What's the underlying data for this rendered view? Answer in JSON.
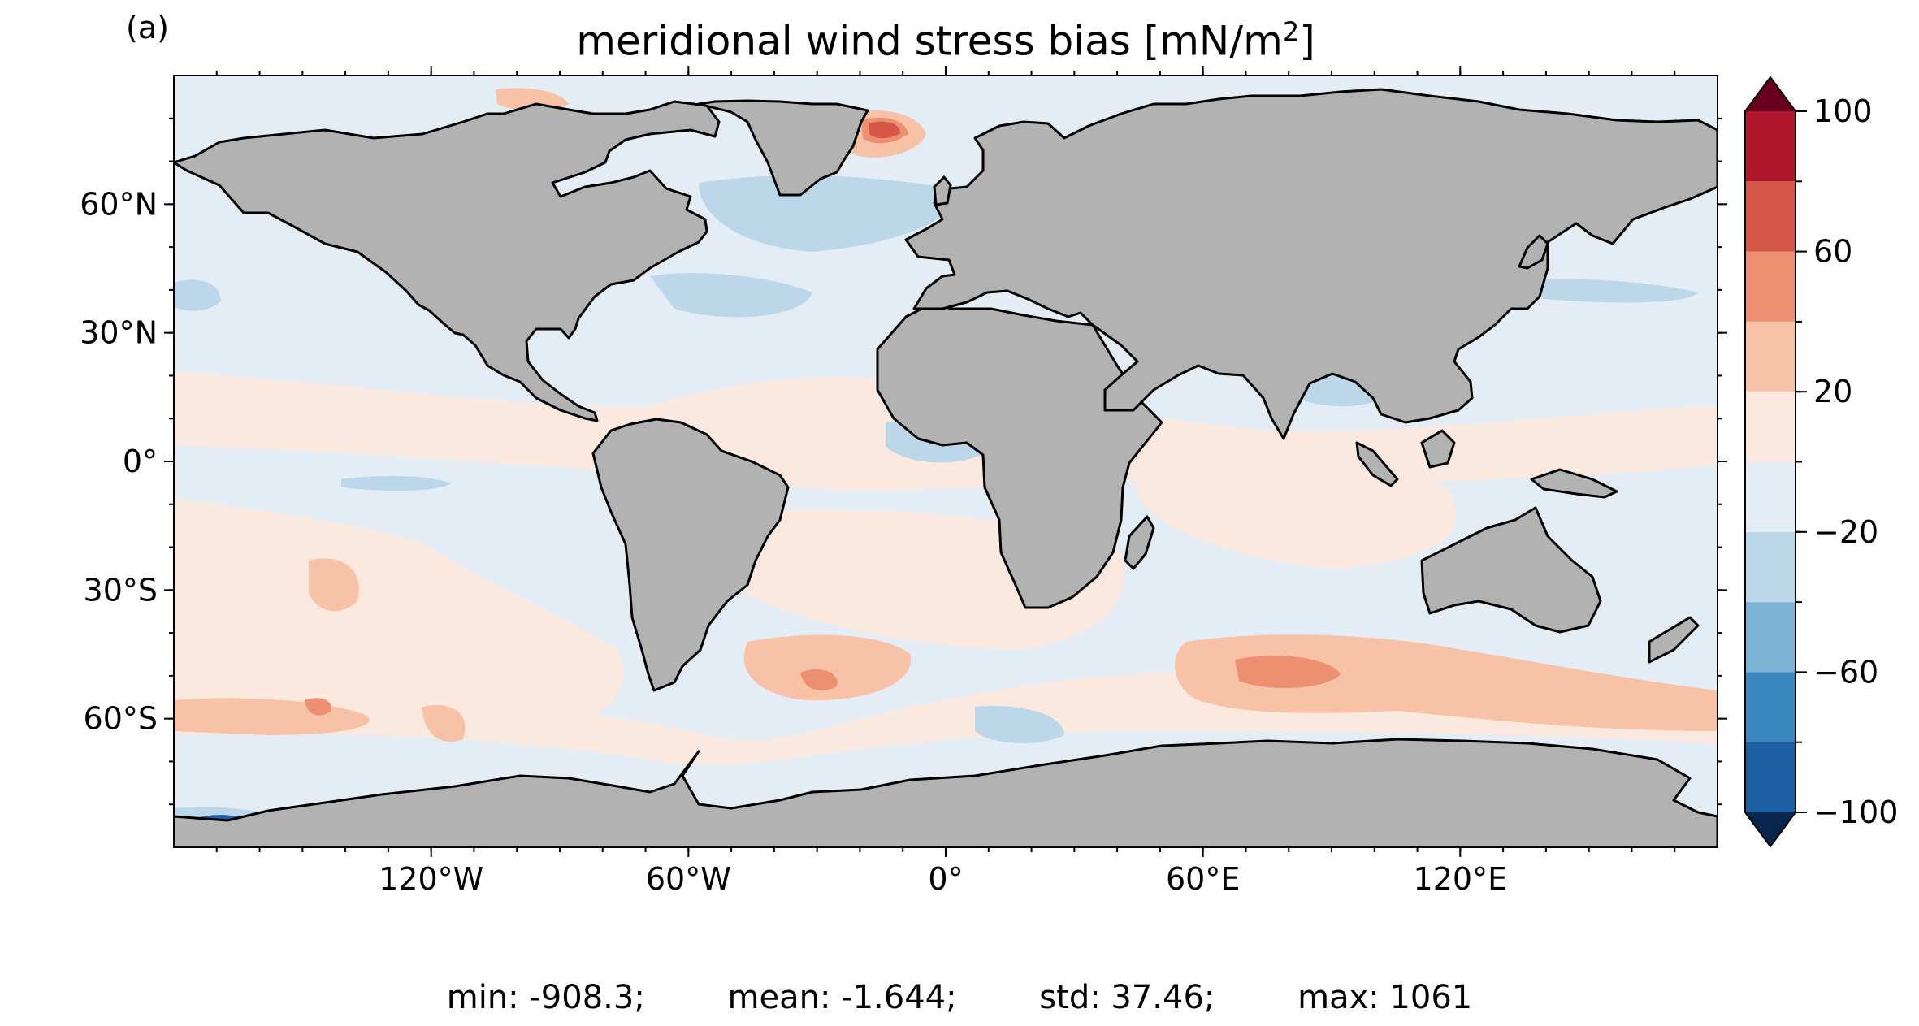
{
  "figure": {
    "panel_label": "(a)",
    "title_prefix": "meridional wind stress bias [mN/m",
    "title_superscript": "2",
    "title_suffix": "]"
  },
  "map": {
    "projection": "equirectangular",
    "lon_range": [
      -180,
      180
    ],
    "lat_range": [
      -90,
      90
    ],
    "land_color": "#b2b2b2",
    "coastline_color": "#000000",
    "xticks": [
      {
        "lon": -120,
        "label": "120°W"
      },
      {
        "lon": -60,
        "label": "60°W"
      },
      {
        "lon": 0,
        "label": "0°"
      },
      {
        "lon": 60,
        "label": "60°E"
      },
      {
        "lon": 120,
        "label": "120°E"
      }
    ],
    "yticks": [
      {
        "lat": 60,
        "label": "60°N"
      },
      {
        "lat": 30,
        "label": "30°N"
      },
      {
        "lat": 0,
        "label": "0°"
      },
      {
        "lat": -30,
        "label": "30°S"
      },
      {
        "lat": -60,
        "label": "60°S"
      }
    ]
  },
  "colorbar": {
    "levels": [
      -100,
      -80,
      -60,
      -40,
      -20,
      0,
      20,
      40,
      60,
      80,
      100
    ],
    "colors": [
      "#1d5fa3",
      "#3b88c1",
      "#7db3d6",
      "#bcd7e9",
      "#e4edf5",
      "#fbe8de",
      "#f7c2a6",
      "#ec9071",
      "#d45747",
      "#b0172c"
    ],
    "under_color": "#08264d",
    "over_color": "#67001f",
    "extend": "both",
    "tick_labels": [
      {
        "value": 100,
        "label": "100"
      },
      {
        "value": 60,
        "label": "60"
      },
      {
        "value": 20,
        "label": "20"
      },
      {
        "value": -20,
        "label": "−20"
      },
      {
        "value": -60,
        "label": "−60"
      },
      {
        "value": -100,
        "label": "−100"
      }
    ]
  },
  "stats": {
    "min": "min: -908.3;",
    "mean": "mean: -1.644;",
    "std": "std: 37.46;",
    "max": "max: 1061"
  }
}
